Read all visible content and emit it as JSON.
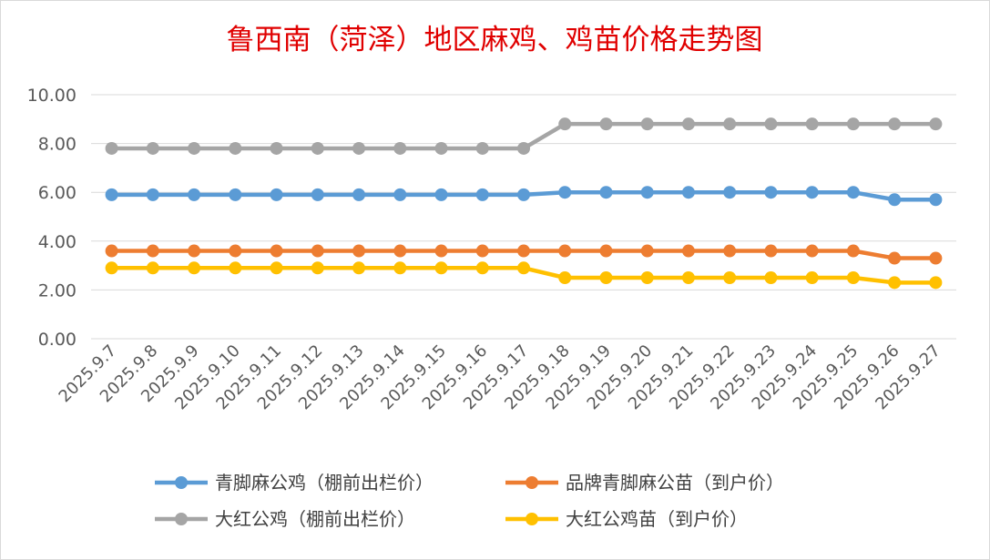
{
  "chart_data": {
    "type": "line",
    "title": "鲁西南（菏泽）地区麻鸡、鸡苗价格走势图",
    "xlabel": "",
    "ylabel": "",
    "ylim": [
      0,
      10
    ],
    "y_ticks": [
      "0.00",
      "2.00",
      "4.00",
      "6.00",
      "8.00",
      "10.00"
    ],
    "grid": true,
    "legend_position": "bottom",
    "categories": [
      "2025.9.7",
      "2025.9.8",
      "2025.9.9",
      "2025.9.10",
      "2025.9.11",
      "2025.9.12",
      "2025.9.13",
      "2025.9.14",
      "2025.9.15",
      "2025.9.16",
      "2025.9.17",
      "2025.9.18",
      "2025.9.19",
      "2025.9.20",
      "2025.9.21",
      "2025.9.22",
      "2025.9.23",
      "2025.9.24",
      "2025.9.25",
      "2025.9.26",
      "2025.9.27"
    ],
    "series": [
      {
        "name": "青脚麻公鸡（棚前出栏价）",
        "color": "#5b9bd5",
        "values": [
          5.9,
          5.9,
          5.9,
          5.9,
          5.9,
          5.9,
          5.9,
          5.9,
          5.9,
          5.9,
          5.9,
          6.0,
          6.0,
          6.0,
          6.0,
          6.0,
          6.0,
          6.0,
          6.0,
          5.7,
          5.7
        ]
      },
      {
        "name": "品牌青脚麻公苗（到户价）",
        "color": "#ed7d31",
        "values": [
          3.6,
          3.6,
          3.6,
          3.6,
          3.6,
          3.6,
          3.6,
          3.6,
          3.6,
          3.6,
          3.6,
          3.6,
          3.6,
          3.6,
          3.6,
          3.6,
          3.6,
          3.6,
          3.6,
          3.3,
          3.3
        ]
      },
      {
        "name": "大红公鸡（棚前出栏价）",
        "color": "#a5a5a5",
        "values": [
          7.8,
          7.8,
          7.8,
          7.8,
          7.8,
          7.8,
          7.8,
          7.8,
          7.8,
          7.8,
          7.8,
          8.8,
          8.8,
          8.8,
          8.8,
          8.8,
          8.8,
          8.8,
          8.8,
          8.8,
          8.8
        ]
      },
      {
        "name": "大红公鸡苗（到户价）",
        "color": "#ffc000",
        "values": [
          2.9,
          2.9,
          2.9,
          2.9,
          2.9,
          2.9,
          2.9,
          2.9,
          2.9,
          2.9,
          2.9,
          2.5,
          2.5,
          2.5,
          2.5,
          2.5,
          2.5,
          2.5,
          2.5,
          2.3,
          2.3
        ]
      }
    ]
  }
}
